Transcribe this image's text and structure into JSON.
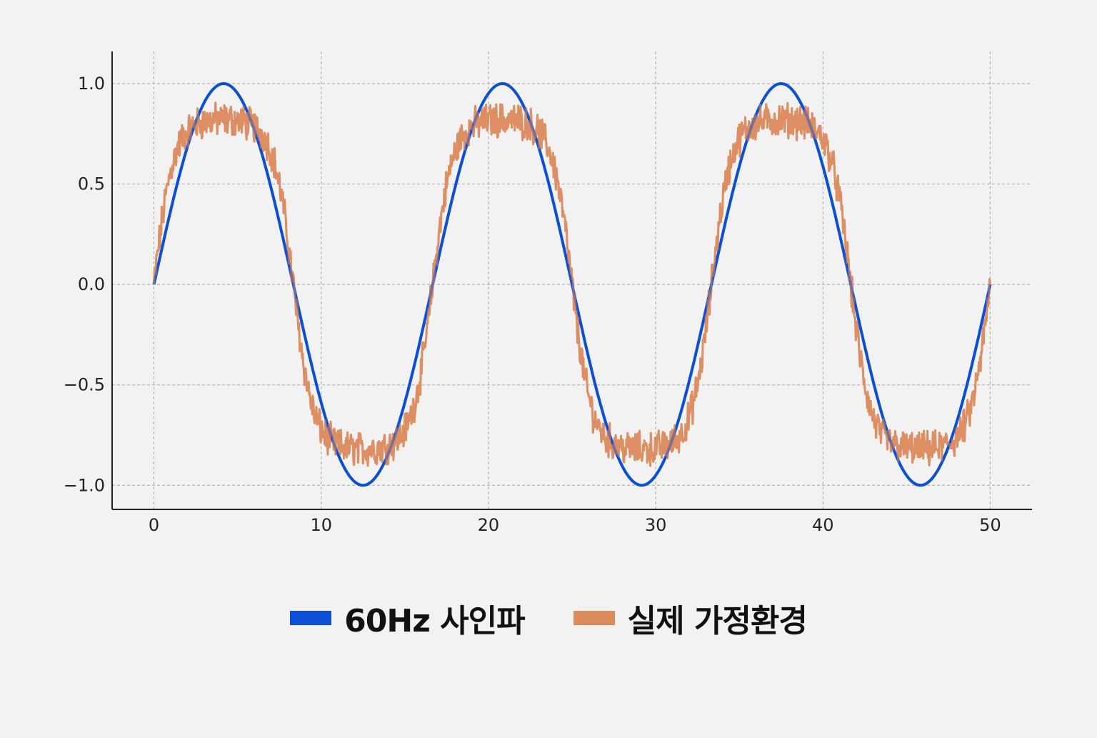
{
  "chart_data": {
    "type": "line",
    "x_range": [
      0,
      50
    ],
    "xlim": [
      -2.5,
      52.5
    ],
    "ylim": [
      -1.12,
      1.16
    ],
    "x_ticks": [
      0,
      10,
      20,
      30,
      40,
      50
    ],
    "x_tick_labels": [
      "0",
      "10",
      "20",
      "30",
      "40",
      "50"
    ],
    "y_ticks": [
      1.0,
      0.5,
      0.0,
      -0.5,
      -1.0
    ],
    "y_tick_labels": [
      "1.0",
      "0.5",
      "0.0",
      "−0.5",
      "−1.0"
    ],
    "grid": true,
    "legend_position": "bottom-center",
    "series": [
      {
        "name": "60Hz 사인파",
        "color": "#0a4fd6",
        "description": "sine, period 16.67, amplitude 1.0",
        "period": 16.667,
        "amplitude": 1.0
      },
      {
        "name": "실제 가정환경",
        "color": "#dc8b5c",
        "description": "flattened, noisy sine, peak ~0.87",
        "period": 16.667,
        "amplitude": 0.87
      }
    ]
  }
}
